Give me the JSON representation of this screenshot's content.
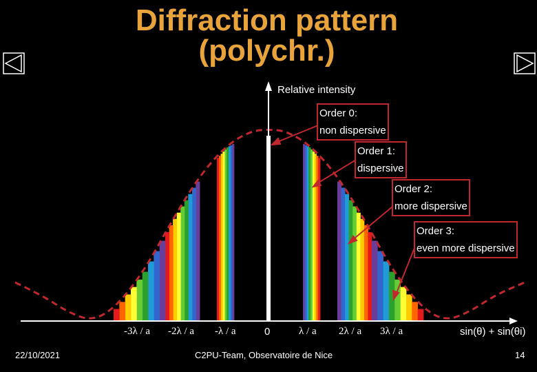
{
  "title_line1": "Diffraction pattern",
  "title_line2": "(polychr.)",
  "y_axis_label": "Relative intensity",
  "x_axis_label": "sin(θ) + sin(θi)",
  "x_ticks": [
    "-3λ / a",
    "-2λ / a",
    "-λ / a",
    "0",
    "λ / a",
    "2λ / a",
    "3λ / a"
  ],
  "annotations": [
    {
      "line1": "Order 0:",
      "line2": "non dispersive"
    },
    {
      "line1": "Order 1:",
      "line2": "dispersive"
    },
    {
      "line1": "Order 2:",
      "line2": "more dispersive"
    },
    {
      "line1": "Order 3:",
      "line2": "even more dispersive"
    }
  ],
  "footer": {
    "date": "22/10/2021",
    "credit": "C2PU-Team, Observatoire de Nice",
    "page_number": "14"
  },
  "nav": {
    "prev_icon": "triangle-left-icon",
    "next_icon": "triangle-right-icon"
  },
  "colors": {
    "title": "#e8a33a",
    "envelope": "#c0282d",
    "spectrum": [
      "#e31a1c",
      "#ff6600",
      "#ffcc00",
      "#ffff33",
      "#66cc33",
      "#2ca02c",
      "#1f9bd7",
      "#3366cc",
      "#6a3d9a"
    ]
  }
}
